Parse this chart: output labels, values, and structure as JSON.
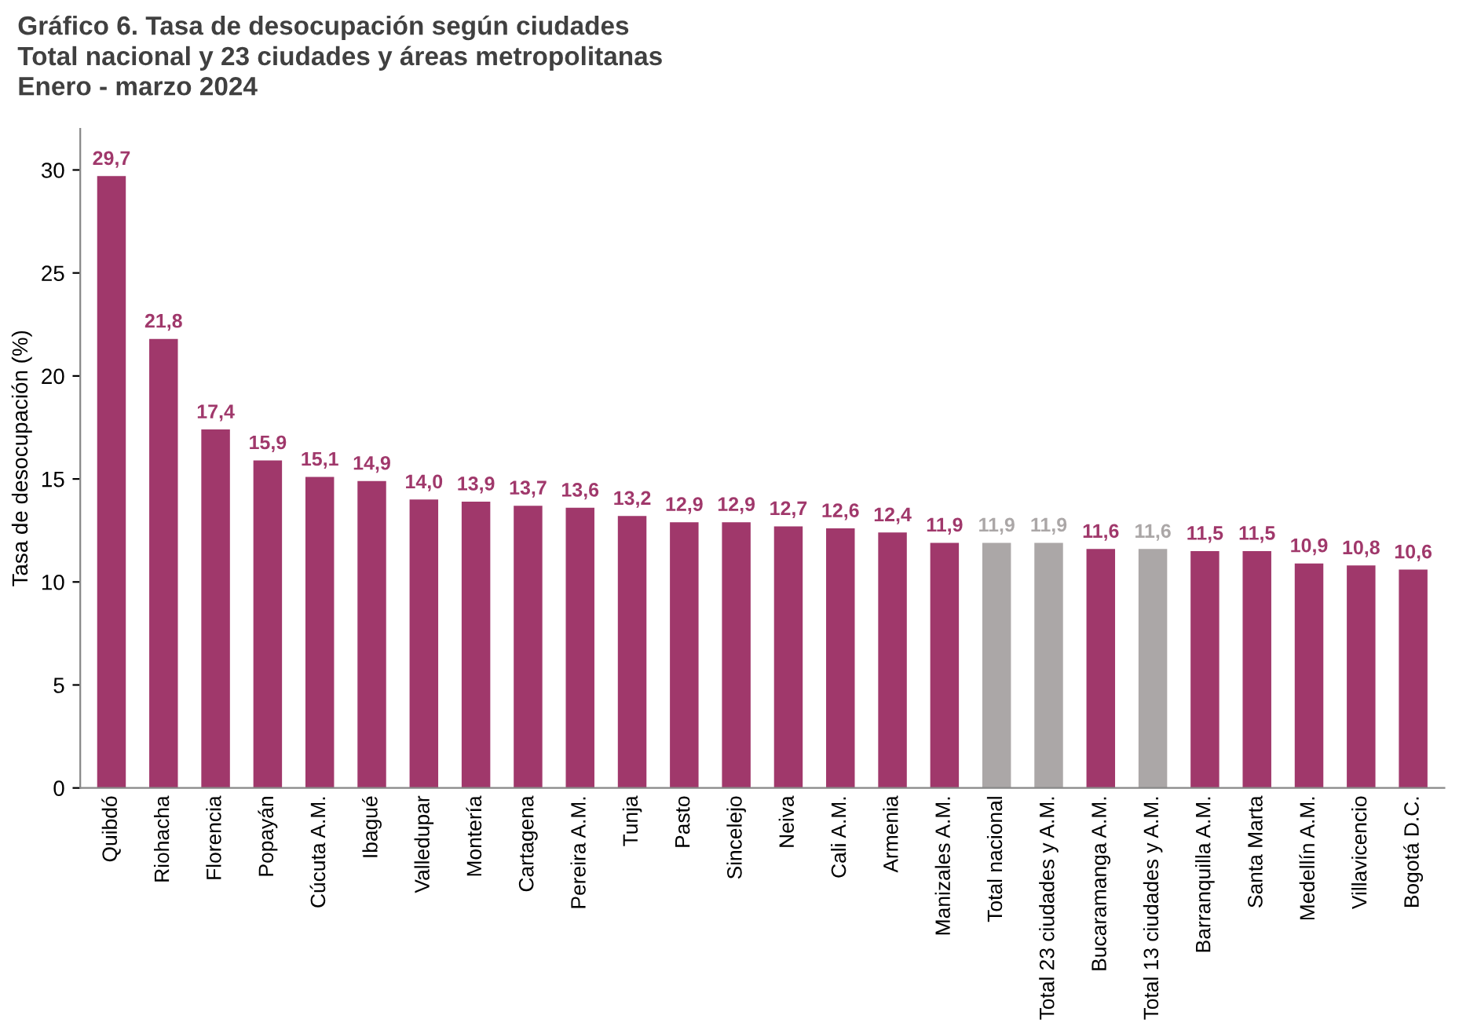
{
  "chart_data": {
    "type": "bar",
    "title": "Gráfico 6. Tasa de desocupación según ciudades\nTotal nacional y 23 ciudades y áreas metropolitanas\nEnero - marzo 2024",
    "ylabel": "Tasa de desocupación (%)",
    "categories": [
      "Quibdó",
      "Riohacha",
      "Florencia",
      "Popayán",
      "Cúcuta A.M.",
      "Ibagué",
      "Valledupar",
      "Montería",
      "Cartagena",
      "Pereira A.M.",
      "Tunja",
      "Pasto",
      "Sincelejo",
      "Neiva",
      "Cali A.M.",
      "Armenia",
      "Manizales A.M.",
      "Total nacional",
      "Total 23 ciudades y A.M.",
      "Bucaramanga A.M.",
      "Total 13 ciudades y A.M.",
      "Barranquilla A.M.",
      "Santa Marta",
      "Medellín A.M.",
      "Villavicencio",
      "Bogotá D.C."
    ],
    "values": [
      29.7,
      21.8,
      17.4,
      15.9,
      15.1,
      14.9,
      14.0,
      13.9,
      13.7,
      13.6,
      13.2,
      12.9,
      12.9,
      12.7,
      12.6,
      12.4,
      11.9,
      11.9,
      11.9,
      11.6,
      11.6,
      11.5,
      11.5,
      10.9,
      10.8,
      10.6
    ],
    "value_labels": [
      "29,7",
      "21,8",
      "17,4",
      "15,9",
      "15,1",
      "14,9",
      "14,0",
      "13,9",
      "13,7",
      "13,6",
      "13,2",
      "12,9",
      "12,9",
      "12,7",
      "12,6",
      "12,4",
      "11,9",
      "11,9",
      "11,9",
      "11,6",
      "11,6",
      "11,5",
      "11,5",
      "10,9",
      "10,8",
      "10,6"
    ],
    "colors": [
      "#a0386b",
      "#a0386b",
      "#a0386b",
      "#a0386b",
      "#a0386b",
      "#a0386b",
      "#a0386b",
      "#a0386b",
      "#a0386b",
      "#a0386b",
      "#a0386b",
      "#a0386b",
      "#a0386b",
      "#a0386b",
      "#a0386b",
      "#a0386b",
      "#a0386b",
      "#aba7a7",
      "#aba7a7",
      "#a0386b",
      "#aba7a7",
      "#a0386b",
      "#a0386b",
      "#a0386b",
      "#a0386b",
      "#a0386b"
    ],
    "ylim": [
      0,
      32
    ],
    "yticks": [
      0,
      5,
      10,
      15,
      20,
      25,
      30
    ],
    "grid": false,
    "legend": false
  }
}
